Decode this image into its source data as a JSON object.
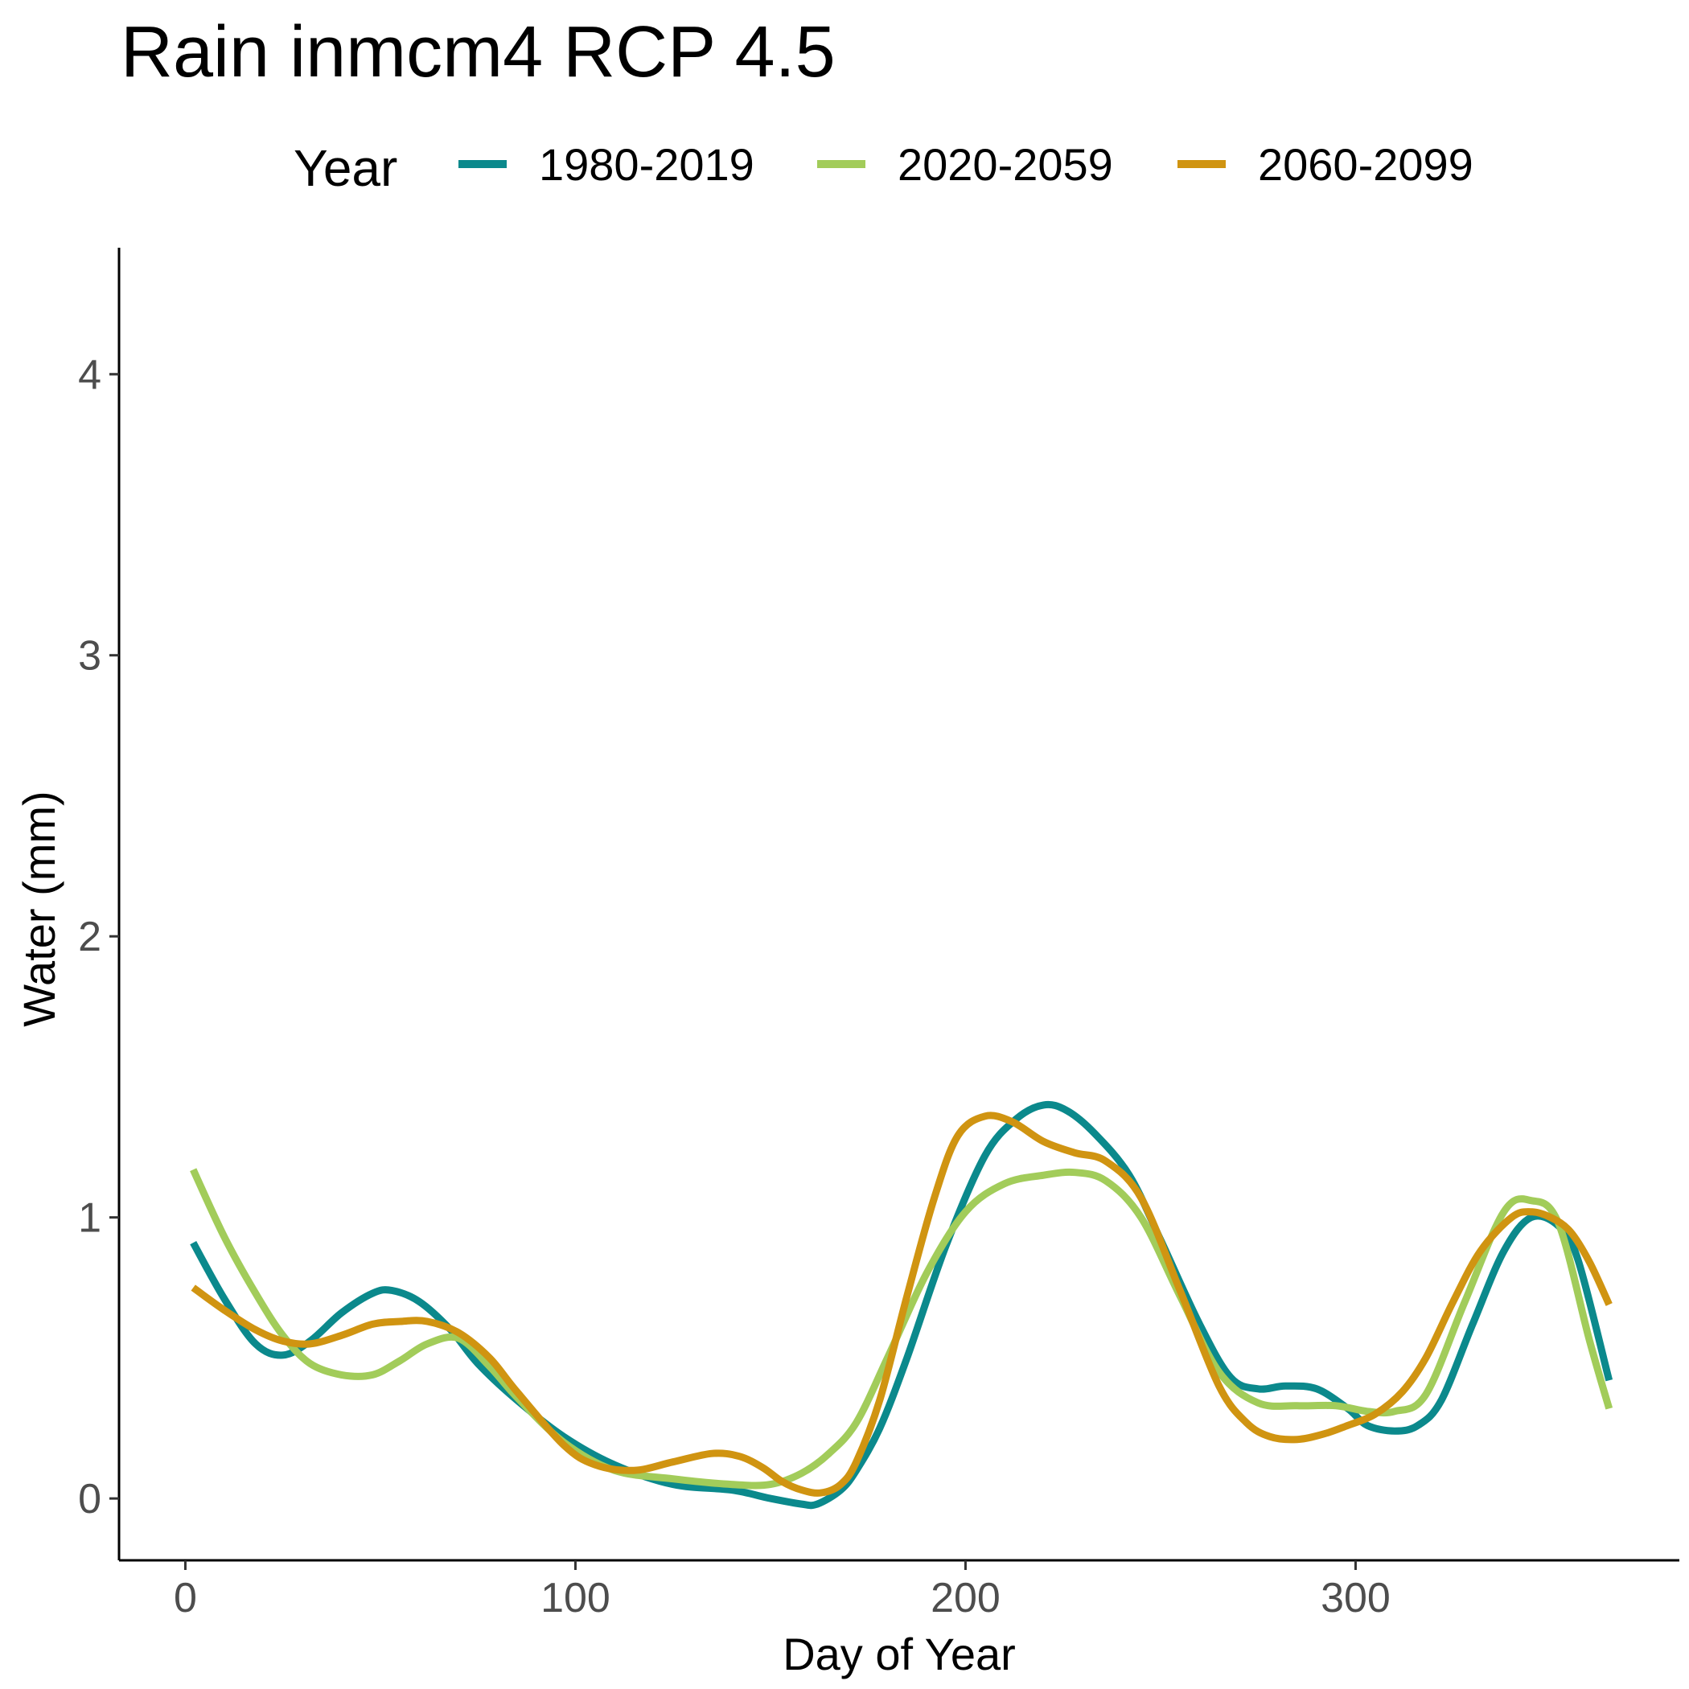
{
  "chart_data": {
    "type": "line",
    "title": "Rain inmcm4 RCP 4.5",
    "xlabel": "Day of Year",
    "ylabel": "Water (mm)",
    "xlim": [
      -17,
      383
    ],
    "ylim": [
      -0.22,
      4.45
    ],
    "x_ticks": [
      0,
      100,
      200,
      300
    ],
    "y_ticks": [
      0,
      1,
      2,
      3,
      4
    ],
    "grid": false,
    "legend": {
      "title": "Year",
      "position": "top"
    },
    "series": [
      {
        "name": "1980-2019",
        "color": "#0b898c",
        "x": [
          2,
          10,
          18,
          25,
          32,
          40,
          48,
          53,
          60,
          68,
          75,
          85,
          97,
          110,
          125,
          140,
          150,
          158,
          162,
          168,
          172,
          178,
          185,
          195,
          205,
          213,
          220,
          226,
          233,
          242,
          250,
          260,
          268,
          275,
          282,
          290,
          298,
          303,
          310,
          316,
          322,
          330,
          338,
          345,
          352,
          357,
          365
        ],
        "y": [
          0.91,
          0.71,
          0.55,
          0.51,
          0.56,
          0.66,
          0.73,
          0.74,
          0.7,
          0.6,
          0.48,
          0.35,
          0.22,
          0.12,
          0.05,
          0.03,
          0.0,
          -0.02,
          -0.02,
          0.03,
          0.1,
          0.25,
          0.5,
          0.9,
          1.22,
          1.35,
          1.4,
          1.38,
          1.3,
          1.15,
          0.92,
          0.62,
          0.43,
          0.39,
          0.4,
          0.39,
          0.32,
          0.26,
          0.24,
          0.26,
          0.35,
          0.62,
          0.88,
          1.0,
          0.97,
          0.85,
          0.42
        ]
      },
      {
        "name": "2020-2059",
        "color": "#a2cc5a",
        "x": [
          2,
          10,
          18,
          25,
          32,
          40,
          48,
          55,
          62,
          70,
          78,
          85,
          97,
          110,
          125,
          140,
          150,
          158,
          165,
          172,
          180,
          190,
          200,
          210,
          220,
          228,
          236,
          245,
          255,
          265,
          275,
          285,
          295,
          303,
          310,
          318,
          328,
          338,
          345,
          352,
          360,
          365
        ],
        "y": [
          1.17,
          0.93,
          0.73,
          0.58,
          0.48,
          0.44,
          0.44,
          0.49,
          0.55,
          0.57,
          0.47,
          0.36,
          0.2,
          0.1,
          0.07,
          0.05,
          0.05,
          0.09,
          0.16,
          0.27,
          0.5,
          0.8,
          1.02,
          1.12,
          1.15,
          1.16,
          1.13,
          1.0,
          0.72,
          0.45,
          0.34,
          0.33,
          0.33,
          0.31,
          0.31,
          0.37,
          0.7,
          1.02,
          1.06,
          0.98,
          0.56,
          0.32
        ]
      },
      {
        "name": "2060-2099",
        "color": "#d09411",
        "x": [
          2,
          10,
          18,
          25,
          32,
          40,
          48,
          55,
          62,
          70,
          78,
          85,
          97,
          105,
          115,
          125,
          135,
          142,
          148,
          153,
          158,
          163,
          168,
          172,
          178,
          185,
          192,
          198,
          205,
          212,
          220,
          228,
          236,
          245,
          255,
          265,
          272,
          278,
          285,
          292,
          298,
          305,
          312,
          318,
          325,
          332,
          340,
          345,
          350,
          355,
          360,
          365
        ],
        "y": [
          0.75,
          0.67,
          0.6,
          0.56,
          0.55,
          0.58,
          0.62,
          0.63,
          0.63,
          0.59,
          0.5,
          0.38,
          0.19,
          0.12,
          0.1,
          0.13,
          0.16,
          0.15,
          0.11,
          0.06,
          0.03,
          0.02,
          0.05,
          0.13,
          0.35,
          0.72,
          1.07,
          1.29,
          1.36,
          1.34,
          1.27,
          1.23,
          1.2,
          1.07,
          0.74,
          0.4,
          0.27,
          0.22,
          0.21,
          0.23,
          0.26,
          0.3,
          0.38,
          0.5,
          0.7,
          0.88,
          1.0,
          1.02,
          1.0,
          0.95,
          0.84,
          0.69
        ]
      }
    ]
  }
}
